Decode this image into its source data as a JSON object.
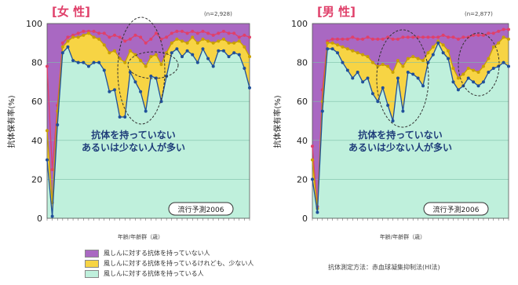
{
  "colors": {
    "none": "#a968c2",
    "few": "#f7d444",
    "have": "#bff0dc",
    "line": "#1f4f9a",
    "highlight": "#e0406a"
  },
  "chart_data": [
    {
      "type": "area",
      "title": "女 性",
      "n_label": "(n=2,928)",
      "ylabel": "抗体保有率(%)",
      "xlabel": "年齢/年齢群（歳）",
      "ylim": [
        0,
        100
      ],
      "yticks": [
        0,
        20,
        40,
        60,
        80,
        100
      ],
      "grid": true,
      "x": [
        1,
        2,
        3,
        4,
        5,
        6,
        7,
        8,
        9,
        10,
        11,
        12,
        13,
        14,
        15,
        16,
        17,
        18,
        19,
        20,
        21,
        22,
        23,
        24,
        25,
        26,
        27,
        28,
        29,
        30,
        31,
        32,
        33,
        34,
        35,
        36,
        37,
        38,
        39,
        40
      ],
      "series": [
        {
          "name": "風しんに対する抗体を持っている人",
          "values": [
            30,
            1,
            48,
            85,
            88,
            81,
            80,
            80,
            78,
            80,
            80,
            76,
            65,
            66,
            52,
            52,
            75,
            70,
            65,
            55,
            73,
            72,
            60,
            73,
            85,
            87,
            83,
            86,
            84,
            80,
            87,
            82,
            78,
            86,
            86,
            83,
            85,
            84,
            77,
            67
          ]
        },
        {
          "name": "風しんに対する抗体を持っているけれども、少ない人",
          "values": [
            45,
            8,
            55,
            88,
            91,
            93,
            93,
            94,
            95,
            93,
            92,
            89,
            85,
            86,
            82,
            80,
            86,
            84,
            81,
            78,
            83,
            84,
            79,
            85,
            90,
            92,
            91,
            90,
            93,
            90,
            92,
            91,
            90,
            91,
            92,
            90,
            90,
            91,
            88,
            83
          ]
        },
        {
          "name": "風しんに対する抗体を持っていない人",
          "values": [
            78,
            25,
            58,
            90,
            93,
            94,
            95,
            96,
            96,
            96,
            95,
            95,
            93,
            94,
            93,
            91,
            92,
            94,
            93,
            90,
            92,
            95,
            92,
            93,
            95,
            96,
            96,
            95,
            96,
            95,
            96,
            95,
            94,
            95,
            96,
            95,
            95,
            93,
            94,
            93
          ]
        }
      ],
      "annotation": [
        "抗体を持っていない",
        "あるいは少ない人が多い"
      ],
      "badge": "流行予測2006"
    },
    {
      "type": "area",
      "title": "男 性",
      "n_label": "(n=2,877)",
      "ylabel": "抗体保有率(%)",
      "xlabel": "年齢/年齢群（歳）",
      "ylim": [
        0,
        100
      ],
      "yticks": [
        0,
        20,
        40,
        60,
        80,
        100
      ],
      "grid": true,
      "x": [
        1,
        2,
        3,
        4,
        5,
        6,
        7,
        8,
        9,
        10,
        11,
        12,
        13,
        14,
        15,
        16,
        17,
        18,
        19,
        20,
        21,
        22,
        23,
        24,
        25,
        26,
        27,
        28,
        29,
        30,
        31,
        32,
        33,
        34,
        35,
        36,
        37,
        38,
        39,
        40
      ],
      "series": [
        {
          "name": "風しんに対する抗体を持っている人",
          "values": [
            20,
            3,
            55,
            87,
            87,
            85,
            80,
            76,
            72,
            75,
            70,
            72,
            64,
            60,
            67,
            58,
            50,
            72,
            55,
            75,
            74,
            72,
            68,
            80,
            84,
            90,
            85,
            82,
            70,
            66,
            68,
            72,
            70,
            68,
            70,
            75,
            77,
            78,
            80,
            78
          ]
        },
        {
          "name": "風しんに対する抗体を持っているけれども、少ない人",
          "values": [
            30,
            5,
            60,
            90,
            90,
            89,
            88,
            87,
            86,
            85,
            84,
            83,
            80,
            78,
            79,
            78,
            75,
            81,
            78,
            82,
            83,
            82,
            81,
            85,
            88,
            91,
            89,
            86,
            77,
            72,
            74,
            77,
            76,
            75,
            78,
            82,
            88,
            90,
            93,
            92
          ]
        },
        {
          "name": "風しんに対する抗体を持っていない人",
          "values": [
            37,
            6,
            66,
            91,
            92,
            92,
            92,
            92,
            93,
            92,
            92,
            93,
            92,
            92,
            92,
            93,
            92,
            92,
            93,
            93,
            93,
            93,
            93,
            93,
            93,
            93,
            94,
            93,
            93,
            92,
            93,
            93,
            94,
            94,
            94,
            95,
            95,
            96,
            97,
            97
          ]
        }
      ],
      "annotation": [
        "抗体を持っていない",
        "あるいは少ない人が多い"
      ],
      "badge": "流行予測2006"
    }
  ],
  "legend": [
    {
      "key": "none",
      "label": "風しんに対する抗体を持っていない人"
    },
    {
      "key": "few",
      "label": "風しんに対する抗体を持っているけれども、少ない人"
    },
    {
      "key": "have",
      "label": "風しんに対する抗体を持っている人"
    }
  ],
  "method_note": "抗体測定方法：赤血球凝集抑制法(HI法)"
}
